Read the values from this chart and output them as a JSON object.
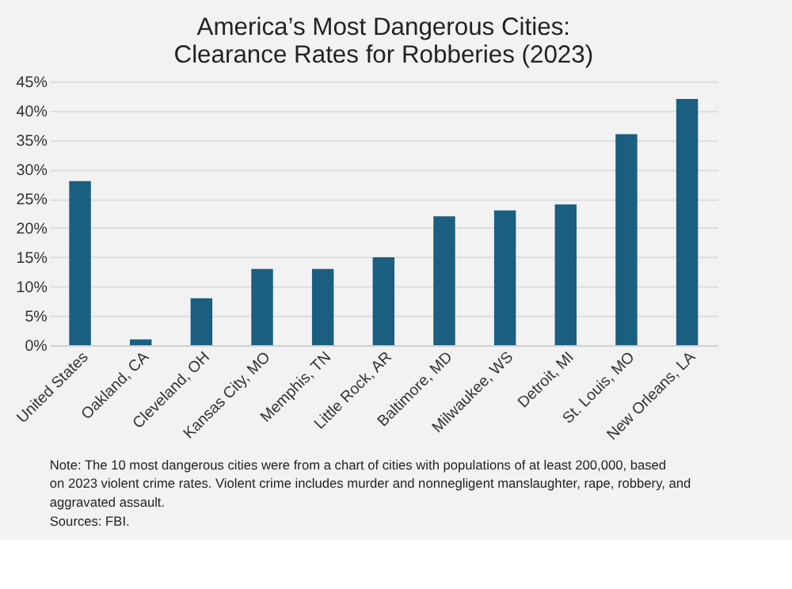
{
  "chart_data": {
    "type": "bar",
    "title": [
      "America’s Most Dangerous Cities:",
      "Clearance Rates for Robberies (2023)"
    ],
    "categories": [
      "United States",
      "Oakland, CA",
      "Cleveland, OH",
      "Kansas City, MO",
      "Memphis, TN",
      "Little Rock, AR",
      "Baltimore, MD",
      "Milwaukee, WS",
      "Detroit, MI",
      "St. Louis, MO",
      "New Orleans, LA"
    ],
    "values": [
      28,
      1,
      8,
      13,
      13,
      15,
      22,
      23,
      24,
      36,
      42
    ],
    "color": "#1a5e80",
    "ylim": [
      0,
      45
    ],
    "yticks": [
      {
        "value": 0,
        "label": "0%"
      },
      {
        "value": 5,
        "label": "5%"
      },
      {
        "value": 10,
        "label": "10%"
      },
      {
        "value": 15,
        "label": "15%"
      },
      {
        "value": 20,
        "label": "20%"
      },
      {
        "value": 25,
        "label": "25%"
      },
      {
        "value": 30,
        "label": "30%"
      },
      {
        "value": 35,
        "label": "35%"
      },
      {
        "value": 40,
        "label": "40%"
      },
      {
        "value": 45,
        "label": "45%"
      }
    ],
    "grid": "y",
    "annotations": [
      "Note: The 10 most dangerous cities were from a chart of cities with populations of at least 200,000, based",
      "on 2023 violent crime rates. Violent crime includes murder and nonnegligent manslaughter, rape, robbery, and",
      "aggravated assault.",
      "Sources: FBI."
    ]
  }
}
